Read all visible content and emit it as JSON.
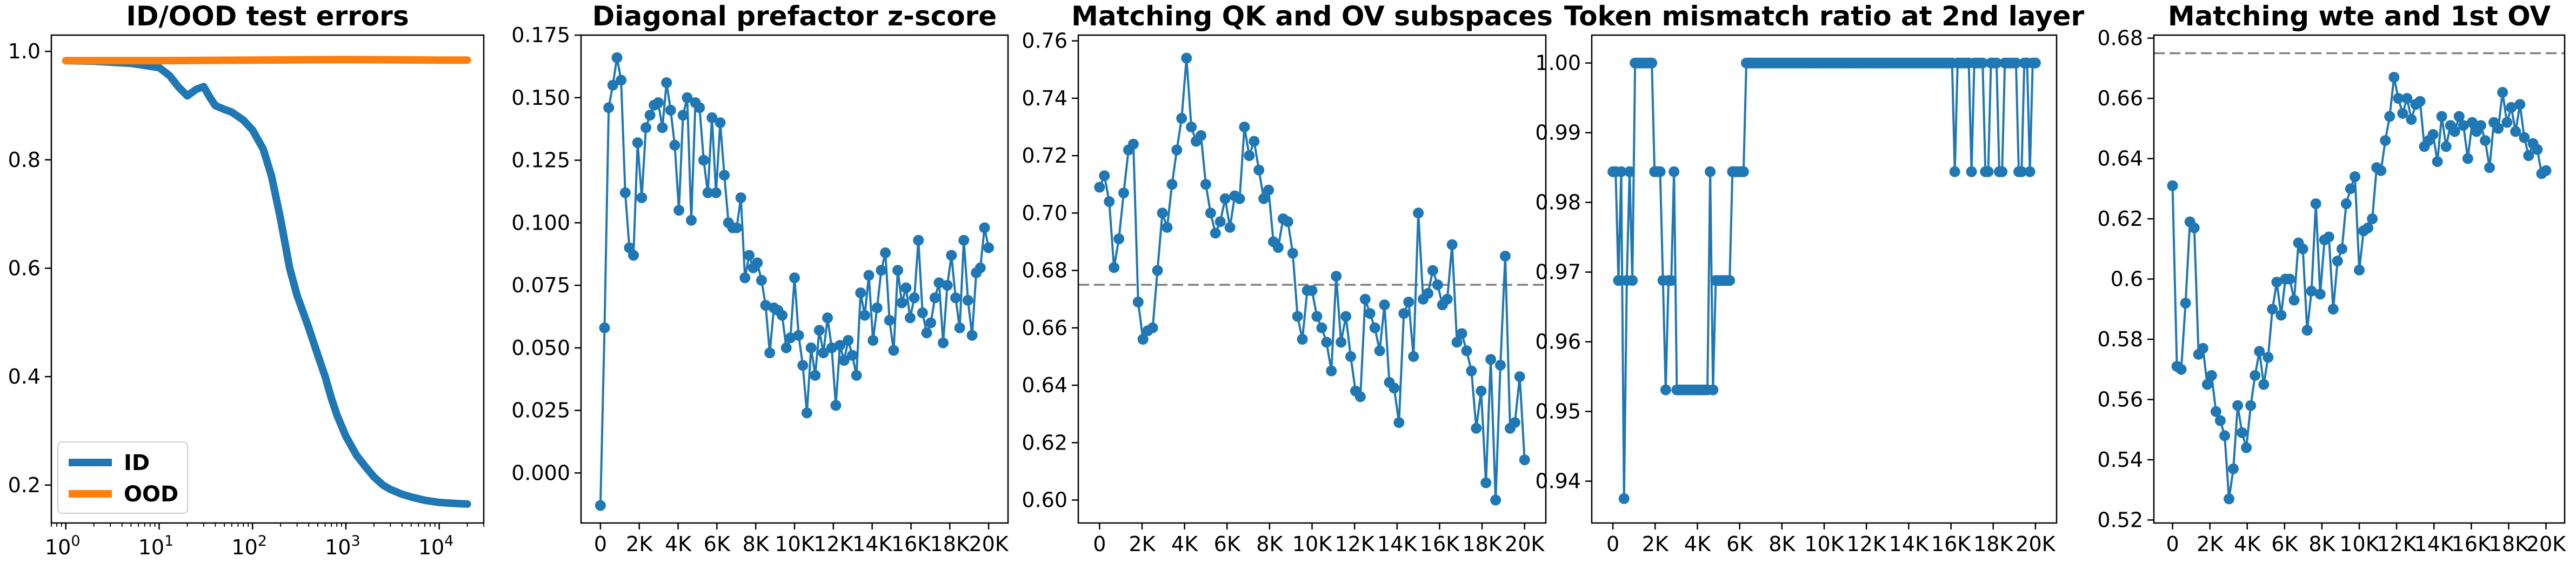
{
  "chart_data": [
    {
      "type": "line",
      "title": "ID/OOD test errors",
      "xscale": "log",
      "xlim": [
        0.7,
        30000
      ],
      "ylim": [
        0.13,
        1.03
      ],
      "xtick_values": [
        1,
        10,
        100,
        1000,
        10000
      ],
      "xtick_labels": [
        {
          "b": "10",
          "e": "0"
        },
        {
          "b": "10",
          "e": "1"
        },
        {
          "b": "10",
          "e": "2"
        },
        {
          "b": "10",
          "e": "3"
        },
        {
          "b": "10",
          "e": "4"
        }
      ],
      "ytick_values": [
        0.2,
        0.4,
        0.6,
        0.8,
        1.0
      ],
      "ytick_labels": [
        "0.2",
        "0.4",
        "0.6",
        "0.8",
        "1.0"
      ],
      "legend": {
        "placement": "lower-left"
      },
      "series": [
        {
          "name": "ID",
          "color": "#1f77b4",
          "x": [
            1,
            2,
            5,
            10,
            13,
            16,
            20,
            25,
            30,
            35,
            40,
            50,
            60,
            80,
            100,
            130,
            160,
            200,
            250,
            300,
            400,
            500,
            600,
            700,
            800,
            1000,
            1300,
            1600,
            2000,
            2500,
            3000,
            4000,
            5000,
            7000,
            10000,
            15000,
            20000
          ],
          "y": [
            0.983,
            0.982,
            0.978,
            0.97,
            0.955,
            0.935,
            0.918,
            0.93,
            0.935,
            0.915,
            0.9,
            0.893,
            0.888,
            0.873,
            0.855,
            0.82,
            0.77,
            0.69,
            0.6,
            0.55,
            0.49,
            0.44,
            0.4,
            0.36,
            0.33,
            0.29,
            0.255,
            0.235,
            0.215,
            0.2,
            0.192,
            0.183,
            0.178,
            0.172,
            0.168,
            0.166,
            0.165
          ]
        },
        {
          "name": "OOD",
          "color": "#ff7f0e",
          "x": [
            1,
            10,
            100,
            1000,
            10000,
            20000
          ],
          "y": [
            0.983,
            0.983,
            0.984,
            0.985,
            0.984,
            0.984
          ]
        }
      ]
    },
    {
      "type": "line",
      "title": "Diagonal prefactor z-score",
      "xlim": [
        -1000,
        21000
      ],
      "ylim": [
        -0.02,
        0.175
      ],
      "xtick_values": [
        0,
        2000,
        4000,
        6000,
        8000,
        10000,
        12000,
        14000,
        16000,
        18000,
        20000
      ],
      "xtick_labels": [
        "0",
        "2K",
        "4K",
        "6K",
        "8K",
        "10K",
        "12K",
        "14K",
        "16K",
        "18K",
        "20K"
      ],
      "ytick_values": [
        0.0,
        0.025,
        0.05,
        0.075,
        0.1,
        0.125,
        0.15,
        0.175
      ],
      "ytick_labels": [
        "0.000",
        "0.025",
        "0.050",
        "0.075",
        "0.100",
        "0.125",
        "0.150",
        "0.175"
      ],
      "series": [
        {
          "color": "#1f77b4",
          "y": [
            -0.013,
            0.058,
            0.146,
            0.155,
            0.166,
            0.157,
            0.112,
            0.09,
            0.087,
            0.132,
            0.11,
            0.138,
            0.143,
            0.147,
            0.148,
            0.138,
            0.156,
            0.145,
            0.131,
            0.105,
            0.143,
            0.15,
            0.101,
            0.148,
            0.146,
            0.125,
            0.112,
            0.142,
            0.112,
            0.14,
            0.119,
            0.1,
            0.098,
            0.098,
            0.11,
            0.078,
            0.087,
            0.082,
            0.084,
            0.077,
            0.067,
            0.048,
            0.066,
            0.065,
            0.063,
            0.05,
            0.054,
            0.078,
            0.055,
            0.043,
            0.024,
            0.05,
            0.039,
            0.057,
            0.048,
            0.062,
            0.05,
            0.027,
            0.051,
            0.045,
            0.053,
            0.047,
            0.039,
            0.072,
            0.063,
            0.079,
            0.053,
            0.066,
            0.081,
            0.088,
            0.061,
            0.049,
            0.081,
            0.068,
            0.074,
            0.062,
            0.07,
            0.093,
            0.064,
            0.056,
            0.06,
            0.07,
            0.076,
            0.052,
            0.075,
            0.087,
            0.07,
            0.058,
            0.093,
            0.069,
            0.055,
            0.08,
            0.082,
            0.098,
            0.09
          ]
        }
      ]
    },
    {
      "type": "line",
      "title": "Matching QK and OV subspaces",
      "xlim": [
        -1000,
        21000
      ],
      "ylim": [
        0.592,
        0.762
      ],
      "hline": {
        "y": 0.675,
        "style": "dashed",
        "color": "#808080"
      },
      "xtick_values": [
        0,
        2000,
        4000,
        6000,
        8000,
        10000,
        12000,
        14000,
        16000,
        18000,
        20000
      ],
      "xtick_labels": [
        "0",
        "2K",
        "4K",
        "6K",
        "8K",
        "10K",
        "12K",
        "14K",
        "16K",
        "18K",
        "20K"
      ],
      "ytick_values": [
        0.6,
        0.62,
        0.64,
        0.66,
        0.68,
        0.7,
        0.72,
        0.74,
        0.76
      ],
      "ytick_labels": [
        "0.60",
        "0.62",
        "0.64",
        "0.66",
        "0.68",
        "0.70",
        "0.72",
        "0.74",
        "0.76"
      ],
      "series": [
        {
          "color": "#1f77b4",
          "y": [
            0.709,
            0.713,
            0.704,
            0.681,
            0.691,
            0.707,
            0.722,
            0.724,
            0.669,
            0.656,
            0.659,
            0.66,
            0.68,
            0.7,
            0.695,
            0.71,
            0.722,
            0.733,
            0.754,
            0.73,
            0.725,
            0.727,
            0.71,
            0.7,
            0.693,
            0.697,
            0.705,
            0.695,
            0.706,
            0.705,
            0.73,
            0.72,
            0.725,
            0.715,
            0.705,
            0.708,
            0.69,
            0.688,
            0.698,
            0.697,
            0.686,
            0.664,
            0.656,
            0.673,
            0.673,
            0.664,
            0.66,
            0.655,
            0.645,
            0.678,
            0.655,
            0.664,
            0.65,
            0.638,
            0.636,
            0.67,
            0.665,
            0.66,
            0.652,
            0.668,
            0.641,
            0.639,
            0.627,
            0.665,
            0.669,
            0.65,
            0.7,
            0.67,
            0.672,
            0.68,
            0.675,
            0.668,
            0.67,
            0.689,
            0.655,
            0.658,
            0.652,
            0.645,
            0.625,
            0.638,
            0.606,
            0.649,
            0.6,
            0.647,
            0.685,
            0.625,
            0.627,
            0.643,
            0.614
          ]
        }
      ]
    },
    {
      "type": "line",
      "title": "Token mismatch ratio at 2nd layer",
      "xlim": [
        -1000,
        21000
      ],
      "ylim": [
        0.934,
        1.004
      ],
      "xtick_values": [
        0,
        2000,
        4000,
        6000,
        8000,
        10000,
        12000,
        14000,
        16000,
        18000,
        20000
      ],
      "xtick_labels": [
        "0",
        "2K",
        "4K",
        "6K",
        "8K",
        "10K",
        "12K",
        "14K",
        "16K",
        "18K",
        "20K"
      ],
      "ytick_values": [
        0.94,
        0.95,
        0.96,
        0.97,
        0.98,
        0.99,
        1.0
      ],
      "ytick_labels": [
        "0.94",
        "0.95",
        "0.96",
        "0.97",
        "0.98",
        "0.99",
        "1.00"
      ],
      "series": [
        {
          "color": "#1f77b4",
          "y": [
            0.9844,
            0.9844,
            0.9688,
            0.9844,
            0.9375,
            0.9688,
            0.9844,
            0.9688,
            1.0,
            1.0,
            1.0,
            1.0,
            1.0,
            1.0,
            1.0,
            0.9844,
            0.9844,
            0.9844,
            0.9688,
            0.9531,
            0.9688,
            0.9688,
            0.9844,
            0.9531,
            0.9531,
            0.9531,
            0.9531,
            0.9531,
            0.9531,
            0.9531,
            0.9531,
            0.9531,
            0.9531,
            0.9531,
            0.9531,
            0.9844,
            0.9531,
            0.9688,
            0.9688,
            0.9688,
            0.9688,
            0.9688,
            0.9688,
            0.9844,
            0.9844,
            0.9844,
            0.9844,
            0.9844,
            1.0,
            1.0,
            1.0,
            1.0,
            1.0,
            1.0,
            1.0,
            1.0,
            1.0,
            1.0,
            1.0,
            1.0,
            1.0,
            1.0,
            1.0,
            1.0,
            1.0,
            1.0,
            1.0,
            1.0,
            1.0,
            1.0,
            1.0,
            1.0,
            1.0,
            1.0,
            1.0,
            1.0,
            1.0,
            1.0,
            1.0,
            1.0,
            1.0,
            1.0,
            1.0,
            1.0,
            1.0,
            1.0,
            1.0,
            1.0,
            1.0,
            1.0,
            1.0,
            1.0,
            1.0,
            1.0,
            1.0,
            1.0,
            1.0,
            1.0,
            1.0,
            1.0,
            1.0,
            1.0,
            1.0,
            1.0,
            1.0,
            1.0,
            1.0,
            1.0,
            1.0,
            1.0,
            1.0,
            1.0,
            1.0,
            1.0,
            1.0,
            1.0,
            1.0,
            1.0,
            1.0,
            1.0,
            1.0,
            1.0,
            1.0,
            0.9844,
            1.0,
            1.0,
            1.0,
            1.0,
            1.0,
            0.9844,
            1.0,
            1.0,
            1.0,
            1.0,
            0.9844,
            0.9844,
            1.0,
            1.0,
            1.0,
            0.9844,
            0.9844,
            1.0,
            1.0,
            1.0,
            1.0,
            1.0,
            0.9844,
            0.9844,
            1.0,
            1.0,
            0.9844,
            1.0,
            1.0
          ]
        }
      ]
    },
    {
      "type": "line",
      "title": "Matching wte and 1st OV",
      "xlim": [
        -1000,
        21000
      ],
      "ylim": [
        0.519,
        0.681
      ],
      "hline": {
        "y": 0.675,
        "style": "dashed",
        "color": "#808080"
      },
      "xtick_values": [
        0,
        2000,
        4000,
        6000,
        8000,
        10000,
        12000,
        14000,
        16000,
        18000,
        20000
      ],
      "xtick_labels": [
        "0",
        "2K",
        "4K",
        "6K",
        "8K",
        "10K",
        "12K",
        "14K",
        "16K",
        "18K",
        "20K"
      ],
      "ytick_values": [
        0.52,
        0.54,
        0.56,
        0.58,
        0.6,
        0.62,
        0.64,
        0.66,
        0.68
      ],
      "ytick_labels": [
        "0.52",
        "0.54",
        "0.56",
        "0.58",
        "0.6",
        "0.62",
        "0.64",
        "0.66",
        "0.68"
      ],
      "series": [
        {
          "color": "#1f77b4",
          "y": [
            0.631,
            0.571,
            0.57,
            0.592,
            0.619,
            0.617,
            0.575,
            0.577,
            0.565,
            0.568,
            0.556,
            0.553,
            0.548,
            0.527,
            0.537,
            0.558,
            0.549,
            0.544,
            0.558,
            0.568,
            0.576,
            0.565,
            0.574,
            0.59,
            0.599,
            0.588,
            0.6,
            0.6,
            0.593,
            0.612,
            0.61,
            0.583,
            0.596,
            0.625,
            0.595,
            0.613,
            0.614,
            0.59,
            0.606,
            0.61,
            0.625,
            0.63,
            0.634,
            0.603,
            0.616,
            0.617,
            0.62,
            0.637,
            0.636,
            0.646,
            0.654,
            0.667,
            0.66,
            0.655,
            0.66,
            0.653,
            0.658,
            0.659,
            0.644,
            0.646,
            0.648,
            0.639,
            0.654,
            0.644,
            0.651,
            0.649,
            0.654,
            0.651,
            0.64,
            0.652,
            0.649,
            0.651,
            0.646,
            0.637,
            0.652,
            0.65,
            0.662,
            0.652,
            0.657,
            0.649,
            0.658,
            0.647,
            0.641,
            0.645,
            0.643,
            0.635,
            0.636
          ]
        }
      ]
    }
  ]
}
